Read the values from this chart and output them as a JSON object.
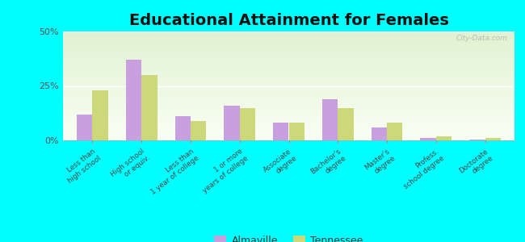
{
  "title": "Educational Attainment for Females",
  "categories": [
    "Less than\nhigh school",
    "High school\nor equiv.",
    "Less than\n1 year of college",
    "1 or more\nyears of college",
    "Associate\ndegree",
    "Bachelor's\ndegree",
    "Master's\ndegree",
    "Profess.\nschool degree",
    "Doctorate\ndegree"
  ],
  "almaville": [
    12,
    37,
    11,
    16,
    8,
    19,
    6,
    1,
    0.3
  ],
  "tennessee": [
    23,
    30,
    9,
    15,
    8,
    15,
    8,
    2,
    1
  ],
  "almaville_color": "#c8a0e0",
  "tennessee_color": "#ccd87a",
  "background_color": "#00ffff",
  "ylim": [
    0,
    50
  ],
  "yticks": [
    0,
    25,
    50
  ],
  "ytick_labels": [
    "0%",
    "25%",
    "50%"
  ],
  "legend_labels": [
    "Almaville",
    "Tennessee"
  ],
  "title_fontsize": 14,
  "watermark": "City-Data.com"
}
